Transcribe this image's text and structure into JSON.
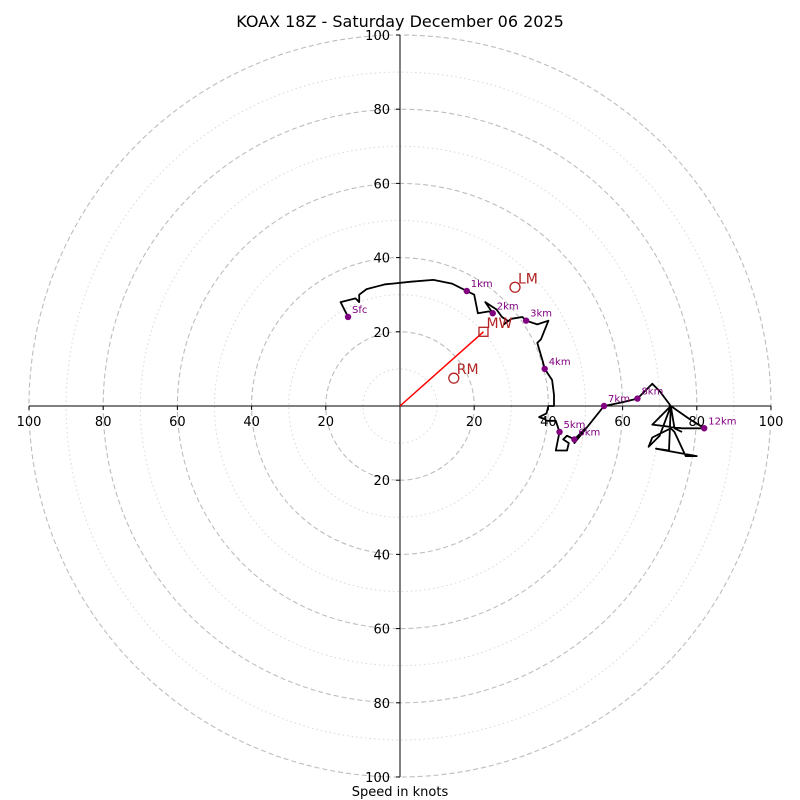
{
  "chart_data": {
    "type": "hodograph",
    "title": "KOAX 18Z - Saturday December 06 2025",
    "xlabel": "Speed in knots",
    "range": [
      -100,
      100
    ],
    "major_rings": [
      20,
      40,
      60,
      80,
      100
    ],
    "minor_rings": [
      10,
      30,
      50,
      70,
      90
    ],
    "x_tick_labels": [
      "100",
      "80",
      "60",
      "40",
      "20",
      "20",
      "40",
      "60",
      "80",
      "100"
    ],
    "x_tick_values": [
      -100,
      -80,
      -60,
      -40,
      -20,
      20,
      40,
      60,
      80,
      100
    ],
    "y_tick_labels": [
      "100",
      "80",
      "60",
      "40",
      "20",
      "20",
      "40",
      "60",
      "80",
      "100"
    ],
    "y_tick_values": [
      100,
      80,
      60,
      40,
      20,
      -20,
      -40,
      -60,
      -80,
      -100
    ],
    "trace": [
      [
        -14,
        24
      ],
      [
        -16,
        28
      ],
      [
        -12,
        29
      ],
      [
        -11,
        28
      ],
      [
        -11,
        30
      ],
      [
        -9,
        31.5
      ],
      [
        -4,
        32.8
      ],
      [
        -2,
        33
      ],
      [
        3,
        33.5
      ],
      [
        9,
        34
      ],
      [
        14,
        33
      ],
      [
        18,
        31
      ],
      [
        20,
        30
      ],
      [
        21,
        25
      ],
      [
        24,
        25.5
      ],
      [
        25,
        25
      ],
      [
        23,
        28
      ],
      [
        26,
        26
      ],
      [
        27.5,
        24
      ],
      [
        29,
        23
      ],
      [
        28,
        22
      ],
      [
        30,
        23.5
      ],
      [
        33,
        24
      ],
      [
        34,
        23
      ],
      [
        37,
        22
      ],
      [
        40,
        23
      ],
      [
        38,
        18
      ],
      [
        37,
        17
      ],
      [
        38.5,
        12
      ],
      [
        39,
        10
      ],
      [
        41,
        7
      ],
      [
        41.5,
        3
      ],
      [
        41.5,
        0
      ],
      [
        40,
        0
      ],
      [
        39.5,
        -2
      ],
      [
        37.5,
        -3
      ],
      [
        39,
        -3.5
      ],
      [
        39.5,
        -4
      ],
      [
        41,
        -4
      ],
      [
        42,
        -4
      ],
      [
        43,
        -7
      ],
      [
        42,
        -12
      ],
      [
        45,
        -12
      ],
      [
        45.5,
        -10
      ],
      [
        44,
        -9
      ],
      [
        45,
        -8
      ],
      [
        47,
        -9
      ],
      [
        49,
        -7
      ],
      [
        50,
        -6
      ],
      [
        47,
        -10
      ],
      [
        49,
        -7.5
      ],
      [
        51,
        -5
      ],
      [
        55,
        0
      ],
      [
        60,
        1
      ],
      [
        64,
        2
      ],
      [
        68,
        6
      ],
      [
        70,
        4
      ],
      [
        73,
        0
      ],
      [
        78,
        -3.5
      ],
      [
        82,
        -6
      ],
      [
        76,
        -6
      ],
      [
        68,
        -5
      ],
      [
        73,
        0
      ],
      [
        70,
        -8
      ],
      [
        67,
        -11
      ],
      [
        68,
        -8.5
      ],
      [
        73,
        -6
      ],
      [
        74,
        -7
      ],
      [
        77,
        -13.5
      ],
      [
        80,
        -13.5
      ],
      [
        69,
        -11.5
      ],
      [
        72.5,
        -12
      ],
      [
        73,
        0
      ],
      [
        74,
        -6
      ],
      [
        76,
        -7
      ]
    ],
    "height_markers": [
      {
        "label": "Sfc",
        "u": -14,
        "v": 24
      },
      {
        "label": "1km",
        "u": 18,
        "v": 31
      },
      {
        "label": "2km",
        "u": 25,
        "v": 25
      },
      {
        "label": "3km",
        "u": 34,
        "v": 23
      },
      {
        "label": "4km",
        "u": 39,
        "v": 10
      },
      {
        "label": "5km",
        "u": 43,
        "v": -7
      },
      {
        "label": "6km",
        "u": 47,
        "v": -9
      },
      {
        "label": "7km",
        "u": 55,
        "v": 0
      },
      {
        "label": "8km",
        "u": 64,
        "v": 2
      },
      {
        "label": "12km",
        "u": 82,
        "v": -6
      }
    ],
    "motion_points": [
      {
        "label": "LM",
        "u": 31,
        "v": 32,
        "shape": "circle"
      },
      {
        "label": "MW",
        "u": 22.5,
        "v": 20,
        "shape": "square"
      },
      {
        "label": "RM",
        "u": 14.5,
        "v": 7.5,
        "shape": "circle"
      }
    ],
    "storm_motion_vector": {
      "from": [
        0,
        0
      ],
      "to": [
        22.5,
        20
      ]
    }
  },
  "colors": {
    "trace": "#000000",
    "markers": "#800080",
    "motion": "#b22222",
    "vector": "#ff0000",
    "major_ring": "#bdbdbd",
    "minor_ring": "#d9d9d9",
    "axis": "#000000"
  }
}
